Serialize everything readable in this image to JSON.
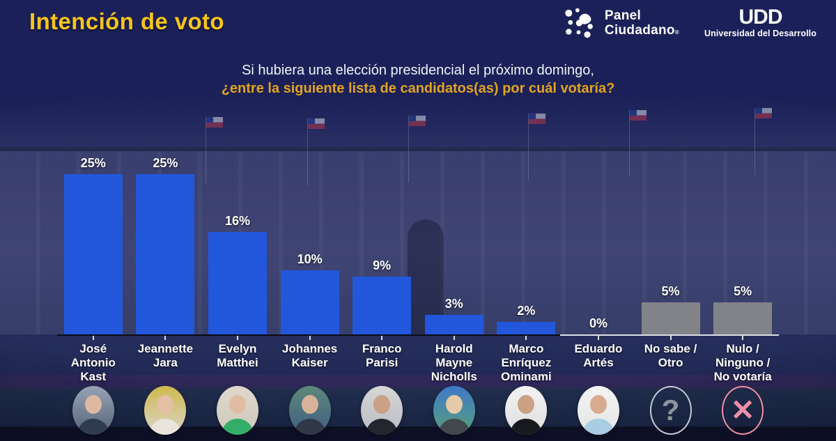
{
  "header": {
    "title": "Intención de voto",
    "logo_panel": {
      "line1": "Panel",
      "line2": "Ciudadano",
      "reg": "®"
    },
    "logo_udd": {
      "acronym": "UDD",
      "name": "Universidad del Desarrollo"
    }
  },
  "question": {
    "line1": "Si hubiera una elección presidencial el próximo domingo,",
    "line2": "¿entre la siguiente lista de candidatos(as) por cuál votaría?"
  },
  "chart_data": {
    "type": "bar",
    "title": "Intención de voto",
    "unit": "%",
    "ylim": [
      0,
      25
    ],
    "grid": false,
    "color_candidate": "#2257DB",
    "color_other": "#828389",
    "categories": [
      "José Antonio Kast",
      "Jeannette Jara",
      "Evelyn Matthei",
      "Johannes Kaiser",
      "Franco Parisi",
      "Harold Mayne Nicholls",
      "Marco Enríquez Ominami",
      "Eduardo Artés",
      "No sabe / Otro",
      "Nulo / Ninguno / No votaría"
    ],
    "values": [
      25,
      25,
      16,
      10,
      9,
      3,
      2,
      0,
      5,
      5
    ],
    "items": [
      {
        "label": "José\nAntonio\nKast",
        "value": 25,
        "value_label": "25%",
        "group": "candidate"
      },
      {
        "label": "Jeannette\nJara",
        "value": 25,
        "value_label": "25%",
        "group": "candidate"
      },
      {
        "label": "Evelyn\nMatthei",
        "value": 16,
        "value_label": "16%",
        "group": "candidate"
      },
      {
        "label": "Johannes\nKaiser",
        "value": 10,
        "value_label": "10%",
        "group": "candidate"
      },
      {
        "label": "Franco\nParisi",
        "value": 9,
        "value_label": "9%",
        "group": "candidate"
      },
      {
        "label": "Harold\nMayne\nNicholls",
        "value": 3,
        "value_label": "3%",
        "group": "candidate"
      },
      {
        "label": "Marco\nEnríquez\nOminami",
        "value": 2,
        "value_label": "2%",
        "group": "candidate"
      },
      {
        "label": "Eduardo\nArtés",
        "value": 0,
        "value_label": "0%",
        "group": "candidate"
      },
      {
        "label": "No sabe /\nOtro",
        "value": 5,
        "value_label": "5%",
        "group": "other"
      },
      {
        "label": "Nulo /\nNinguno /\nNo votaría",
        "value": 5,
        "value_label": "5%",
        "group": "other"
      }
    ]
  },
  "avatars": [
    {
      "kind": "photo",
      "person": "José Antonio Kast",
      "bg_top": "#97A2B4",
      "bg_bottom": "#55637A",
      "skin": "#DCB9A0",
      "suit": "#2E3B50"
    },
    {
      "kind": "photo",
      "person": "Jeannette Jara",
      "bg_top": "#CDB94E",
      "bg_bottom": "#DCD4C8",
      "skin": "#E3BFA4",
      "suit": "#E9E4DC"
    },
    {
      "kind": "photo",
      "person": "Evelyn Matthei",
      "bg_top": "#DED9CC",
      "bg_bottom": "#CFC9BC",
      "skin": "#E0BDA2",
      "suit": "#33AE68"
    },
    {
      "kind": "photo",
      "person": "Johannes Kaiser",
      "bg_top": "#5D8878",
      "bg_bottom": "#3F5E84",
      "skin": "#D8B298",
      "suit": "#303848"
    },
    {
      "kind": "photo",
      "person": "Franco Parisi",
      "bg_top": "#D6D6D6",
      "bg_bottom": "#B9BCC2",
      "skin": "#C9A184",
      "suit": "#23262E"
    },
    {
      "kind": "photo",
      "person": "Harold Mayne Nicholls",
      "bg_top": "#3E79C8",
      "bg_bottom": "#58A07A",
      "skin": "#E6C9A8",
      "suit": "#43484E"
    },
    {
      "kind": "photo",
      "person": "Marco Enríquez Ominami",
      "bg_top": "#F3F3F3",
      "bg_bottom": "#DEDEDE",
      "skin": "#CAA183",
      "suit": "#17191E"
    },
    {
      "kind": "photo",
      "person": "Eduardo Artés",
      "bg_top": "#F4F4F2",
      "bg_bottom": "#E3E5E6",
      "skin": "#D8AB90",
      "suit": "#A9CDE2"
    },
    {
      "kind": "glyph",
      "person": "No sabe / Otro",
      "glyph": "?",
      "border": "#C6CAD2",
      "glyph_color": "#8E939C"
    },
    {
      "kind": "glyph",
      "person": "Nulo / Ninguno / No votaría",
      "glyph": "✕",
      "border": "#EF8FA7",
      "glyph_color": "#EF8FA7"
    }
  ]
}
